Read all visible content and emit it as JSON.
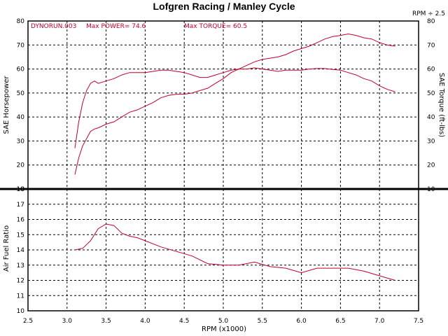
{
  "chart_data": [
    {
      "type": "line",
      "title": "Lofgren Racing / Manley Cycle",
      "ylabel_left": "SAE Horsepower",
      "ylabel_right": "SAE Torque (ft-lbs)",
      "rpm_factor_label": "RPM ÷ 2.5",
      "run_label": "DYNORUN.003",
      "max_power_label": "Max POWER= 74.6",
      "max_torque_label": "Max TORQUE= 60.5",
      "xlim": [
        2.5,
        7.5
      ],
      "ylim": [
        10,
        80
      ],
      "grid": true,
      "series": [
        {
          "name": "horsepower",
          "color": "#c0002a",
          "x": [
            3.1,
            3.15,
            3.2,
            3.25,
            3.3,
            3.35,
            3.4,
            3.5,
            3.6,
            3.7,
            3.8,
            3.9,
            4.0,
            4.1,
            4.2,
            4.3,
            4.4,
            4.5,
            4.6,
            4.7,
            4.8,
            4.9,
            5.0,
            5.1,
            5.2,
            5.3,
            5.4,
            5.5,
            5.6,
            5.7,
            5.8,
            5.9,
            6.0,
            6.1,
            6.2,
            6.3,
            6.4,
            6.5,
            6.6,
            6.7,
            6.8,
            6.9,
            7.0,
            7.1,
            7.2
          ],
          "y": [
            16,
            23,
            28,
            31,
            34,
            35,
            35.5,
            37,
            38,
            40,
            42,
            43,
            44.5,
            46,
            48,
            49,
            49.5,
            49.5,
            50,
            51,
            52,
            54,
            56,
            58.5,
            60,
            61.5,
            63,
            64,
            64.5,
            65,
            66,
            67.5,
            68.5,
            69.5,
            71,
            72.5,
            73.5,
            74,
            74.6,
            74,
            73,
            72.5,
            71,
            70,
            69.5
          ]
        },
        {
          "name": "torque",
          "color": "#c0002a",
          "x": [
            3.1,
            3.15,
            3.2,
            3.25,
            3.3,
            3.35,
            3.4,
            3.5,
            3.6,
            3.7,
            3.8,
            3.9,
            4.0,
            4.1,
            4.2,
            4.3,
            4.4,
            4.5,
            4.6,
            4.7,
            4.8,
            4.9,
            5.0,
            5.1,
            5.2,
            5.3,
            5.4,
            5.5,
            5.6,
            5.7,
            5.8,
            5.9,
            6.0,
            6.1,
            6.2,
            6.3,
            6.4,
            6.5,
            6.6,
            6.7,
            6.8,
            6.9,
            7.0,
            7.1,
            7.2
          ],
          "y": [
            27,
            38,
            46,
            51,
            54,
            55,
            54,
            55,
            56,
            57.5,
            58.5,
            58.5,
            58.5,
            59,
            59.5,
            59.5,
            59,
            58.5,
            57.5,
            56.5,
            56.5,
            57.5,
            58.5,
            59.5,
            60,
            60,
            60.5,
            60,
            59.5,
            59,
            59.5,
            59.5,
            59.5,
            60,
            60.2,
            60.2,
            59.8,
            59.5,
            58.5,
            57.5,
            56,
            55,
            53,
            51.5,
            50.5
          ]
        }
      ]
    },
    {
      "type": "line",
      "ylabel": "Air Fuel Ratio",
      "xlabel": "RPM (x1000)",
      "xlim": [
        2.5,
        7.5
      ],
      "ylim": [
        10,
        18
      ],
      "grid": true,
      "series": [
        {
          "name": "air-fuel-ratio",
          "color": "#c0002a",
          "x": [
            3.1,
            3.2,
            3.3,
            3.4,
            3.5,
            3.6,
            3.7,
            3.8,
            3.9,
            4.0,
            4.2,
            4.4,
            4.6,
            4.8,
            5.0,
            5.2,
            5.4,
            5.6,
            5.8,
            6.0,
            6.2,
            6.4,
            6.6,
            6.8,
            7.0,
            7.2
          ],
          "y": [
            14.0,
            14.1,
            14.6,
            15.4,
            15.7,
            15.6,
            15.1,
            14.9,
            14.8,
            14.6,
            14.2,
            13.9,
            13.6,
            13.1,
            13.0,
            13.0,
            13.2,
            12.9,
            12.8,
            12.5,
            12.8,
            12.8,
            12.8,
            12.6,
            12.3,
            12.0
          ]
        }
      ]
    }
  ],
  "axes": {
    "top_left_ticks": [
      "80",
      "70",
      "60",
      "50",
      "40",
      "30",
      "20",
      "10"
    ],
    "top_right_ticks": [
      "80",
      "70",
      "60",
      "50",
      "40",
      "30",
      "20",
      "10"
    ],
    "bottom_ticks": [
      "18",
      "17",
      "16",
      "15",
      "14",
      "13",
      "12",
      "11",
      "10"
    ],
    "x_ticks": [
      "2.5",
      "3.0",
      "3.5",
      "4.0",
      "4.5",
      "5.0",
      "5.5",
      "6.0",
      "6.5",
      "7.0",
      "7.5"
    ]
  }
}
